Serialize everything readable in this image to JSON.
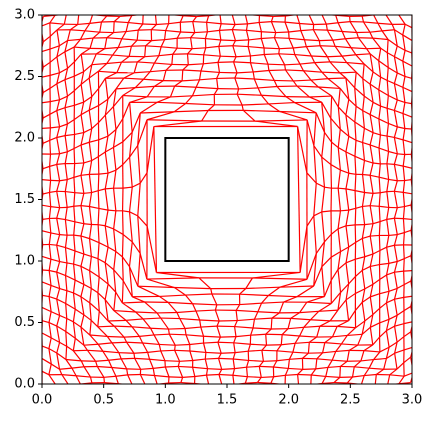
{
  "chart_data": {
    "type": "mesh",
    "xlim": [
      0,
      3
    ],
    "ylim": [
      0,
      3
    ],
    "xticks": [
      {
        "value": 0,
        "label": "0.0"
      },
      0.5,
      {
        "value": 1,
        "label": "1.0"
      },
      1.5,
      {
        "value": 2,
        "label": "2.0"
      },
      2.5,
      {
        "value": 3,
        "label": "3.0"
      }
    ],
    "yticks": [
      {
        "value": 0,
        "label": "0.0"
      },
      0.5,
      {
        "value": 1,
        "label": "1.0"
      },
      1.5,
      {
        "value": 2,
        "label": "2.0"
      },
      2.5,
      {
        "value": 3,
        "label": "3.0"
      }
    ],
    "mesh_color": "#ff0000",
    "square": {
      "x0": 1,
      "x1": 2,
      "y0": 1,
      "y1": 2,
      "color": "#000000"
    }
  }
}
